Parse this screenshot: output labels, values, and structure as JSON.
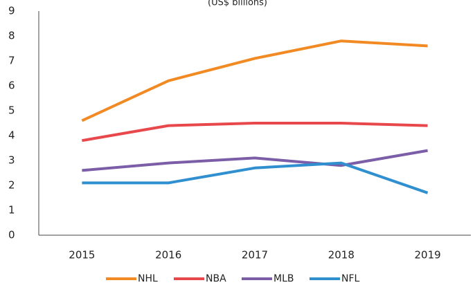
{
  "chart_data": {
    "type": "line",
    "subtitle": "(US$ billions)",
    "categories": [
      "2015",
      "2016",
      "2017",
      "2018",
      "2019"
    ],
    "series": [
      {
        "name": "NHL",
        "color": "#f28a24",
        "values": [
          4.6,
          6.2,
          7.1,
          7.8,
          7.6
        ]
      },
      {
        "name": "NBA",
        "color": "#e8474c",
        "values": [
          3.8,
          4.4,
          4.5,
          4.5,
          4.4
        ]
      },
      {
        "name": "MLB",
        "color": "#7b5ea7",
        "values": [
          2.6,
          2.9,
          3.1,
          2.8,
          3.4
        ]
      },
      {
        "name": "NFL",
        "color": "#2f8fcf",
        "values": [
          2.1,
          2.1,
          2.7,
          2.9,
          1.7
        ]
      }
    ],
    "ylim": [
      0,
      9
    ],
    "yticks": [
      0,
      1,
      2,
      3,
      4,
      5,
      6,
      7,
      8,
      9
    ],
    "grid": false,
    "legend": "bottom"
  }
}
